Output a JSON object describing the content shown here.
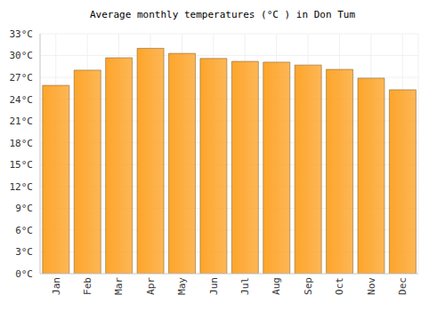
{
  "chart_data": {
    "type": "bar",
    "title": "Average monthly temperatures (°C ) in Don Tum",
    "categories": [
      "Jan",
      "Feb",
      "Mar",
      "Apr",
      "May",
      "Jun",
      "Jul",
      "Aug",
      "Sep",
      "Oct",
      "Nov",
      "Dec"
    ],
    "values": [
      25.9,
      28.0,
      29.7,
      31.0,
      30.3,
      29.6,
      29.2,
      29.1,
      28.7,
      28.1,
      26.9,
      25.3
    ],
    "color": "#fda52b",
    "ylim": [
      0,
      33
    ],
    "yticks": [
      {
        "value": 0,
        "label": "0°C"
      },
      {
        "value": 3,
        "label": "3°C"
      },
      {
        "value": 6,
        "label": "6°C"
      },
      {
        "value": 9,
        "label": "9°C"
      },
      {
        "value": 12,
        "label": "12°C"
      },
      {
        "value": 15,
        "label": "15°C"
      },
      {
        "value": 18,
        "label": "18°C"
      },
      {
        "value": 21,
        "label": "21°C"
      },
      {
        "value": 24,
        "label": "24°C"
      },
      {
        "value": 27,
        "label": "27°C"
      },
      {
        "value": 30,
        "label": "30°C"
      },
      {
        "value": 33,
        "label": "33°C"
      }
    ],
    "grid": true
  }
}
